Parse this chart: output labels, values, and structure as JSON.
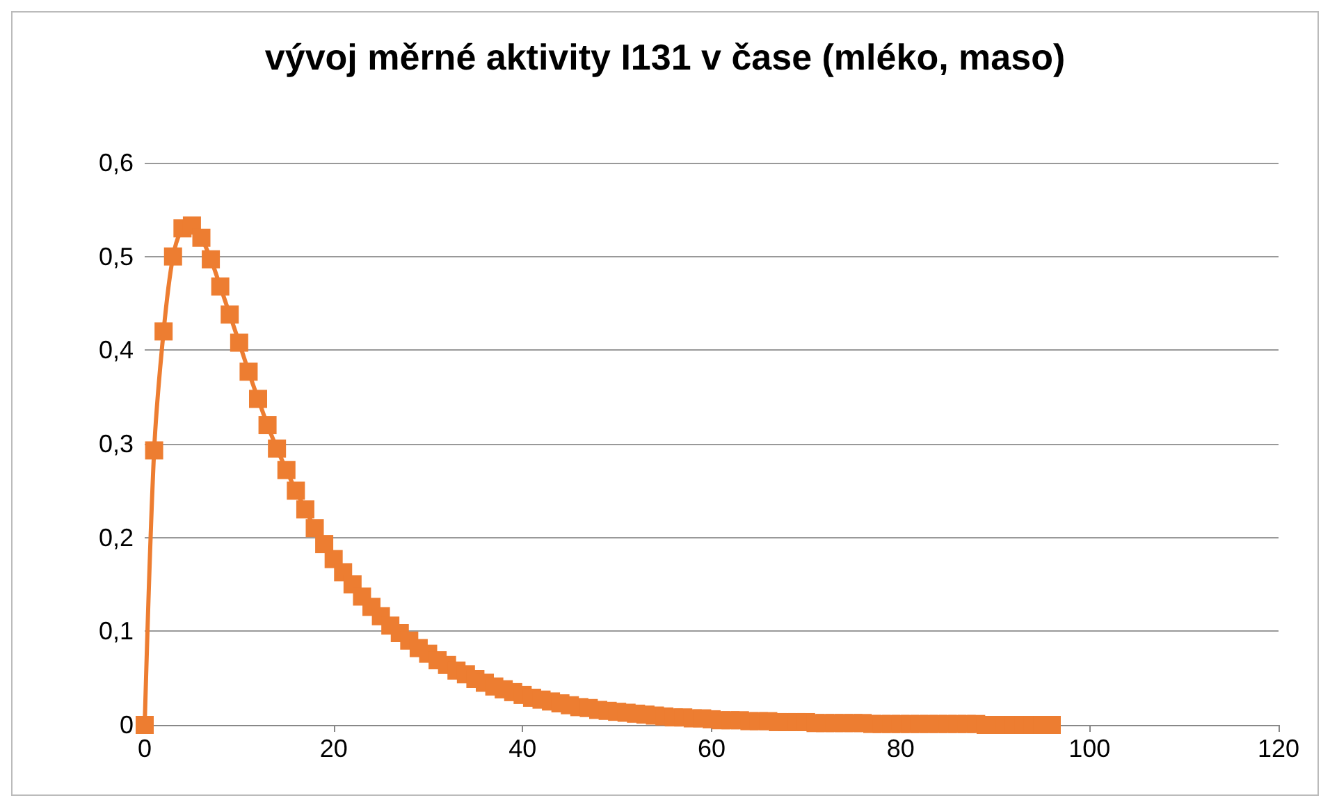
{
  "chart_data": {
    "type": "line",
    "title": "vývoj měrné aktivity I131 v čase (mléko, maso)",
    "x": [
      0,
      1,
      2,
      3,
      4,
      5,
      6,
      7,
      8,
      9,
      10,
      11,
      12,
      13,
      14,
      15,
      16,
      17,
      18,
      19,
      20,
      21,
      22,
      23,
      24,
      25,
      26,
      27,
      28,
      29,
      30,
      31,
      32,
      33,
      34,
      35,
      36,
      37,
      38,
      39,
      40,
      41,
      42,
      43,
      44,
      45,
      46,
      47,
      48,
      49,
      50,
      51,
      52,
      53,
      54,
      55,
      56,
      57,
      58,
      59,
      60,
      61,
      62,
      63,
      64,
      65,
      66,
      67,
      68,
      69,
      70,
      71,
      72,
      73,
      74,
      75,
      76,
      77,
      78,
      79,
      80,
      81,
      82,
      83,
      84,
      85,
      86,
      87,
      88,
      89,
      90,
      91,
      92,
      93,
      94,
      95,
      96
    ],
    "series": [
      {
        "color": "#ed7d31",
        "values": [
          0,
          0.293,
          0.42,
          0.5,
          0.53,
          0.533,
          0.52,
          0.497,
          0.468,
          0.438,
          0.408,
          0.377,
          0.348,
          0.32,
          0.295,
          0.272,
          0.25,
          0.23,
          0.21,
          0.193,
          0.177,
          0.163,
          0.15,
          0.137,
          0.126,
          0.116,
          0.106,
          0.098,
          0.09,
          0.082,
          0.076,
          0.069,
          0.064,
          0.058,
          0.054,
          0.049,
          0.045,
          0.041,
          0.038,
          0.035,
          0.032,
          0.029,
          0.027,
          0.025,
          0.023,
          0.021,
          0.019,
          0.018,
          0.016,
          0.015,
          0.014,
          0.013,
          0.012,
          0.011,
          0.01,
          0.009,
          0.008,
          0.008,
          0.007,
          0.007,
          0.006,
          0.005,
          0.005,
          0.005,
          0.004,
          0.004,
          0.004,
          0.003,
          0.003,
          0.003,
          0.003,
          0.002,
          0.002,
          0.002,
          0.002,
          0.002,
          0.002,
          0.001,
          0.001,
          0.001,
          0.001,
          0.001,
          0.001,
          0.001,
          0.001,
          0.001,
          0.001,
          0.001,
          0.001,
          0,
          0,
          0,
          0,
          0,
          0,
          0,
          0
        ]
      }
    ],
    "xlim": [
      0,
      120
    ],
    "xticks": [
      0,
      20,
      40,
      60,
      80,
      100,
      120
    ],
    "ylim": [
      0,
      0.6
    ],
    "yticks": [
      0,
      {
        "value": 0.1,
        "label": "0,1"
      },
      {
        "value": 0.2,
        "label": "0,2"
      },
      {
        "value": 0.3,
        "label": "0,3"
      },
      {
        "value": 0.4,
        "label": "0,4"
      },
      {
        "value": 0.5,
        "label": "0,5"
      },
      {
        "value": 0.6,
        "label": "0,6"
      }
    ],
    "grid": "y",
    "marker": "square",
    "line_style": "solid"
  }
}
